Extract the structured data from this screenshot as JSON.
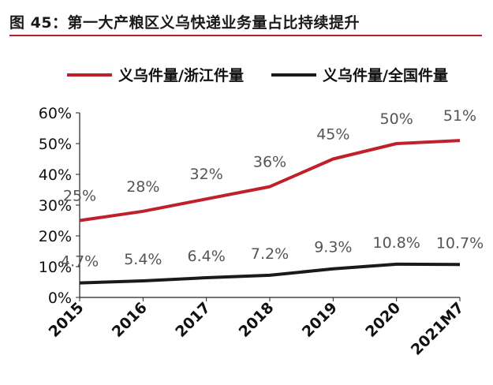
{
  "title": "图 45：第一大产粮区义乌快递业务量占比持续提升",
  "colors": {
    "accent": "#b8202a",
    "series_red": "#c0202a",
    "series_black": "#1a1a1a"
  },
  "chart_data": {
    "type": "line",
    "title": "图 45：第一大产粮区义乌快递业务量占比持续提升",
    "x": [
      "2015",
      "2016",
      "2017",
      "2018",
      "2019",
      "2020",
      "2021M7"
    ],
    "ylim": [
      0,
      60
    ],
    "yticks": [
      "0%",
      "10%",
      "20%",
      "30%",
      "40%",
      "50%",
      "60%"
    ],
    "legend_position": "top",
    "grid": false,
    "series": [
      {
        "name": "义乌件量/浙江件量",
        "color": "#c0202a",
        "values": [
          25,
          28,
          32,
          36,
          45,
          50,
          51
        ],
        "labels": [
          "25%",
          "28%",
          "32%",
          "36%",
          "45%",
          "50%",
          "51%"
        ]
      },
      {
        "name": "义乌件量/全国件量",
        "color": "#1a1a1a",
        "values": [
          4.7,
          5.4,
          6.4,
          7.2,
          9.3,
          10.8,
          10.7
        ],
        "labels": [
          "4.7%",
          "5.4%",
          "6.4%",
          "7.2%",
          "9.3%",
          "10.8%",
          "10.7%"
        ]
      }
    ]
  }
}
